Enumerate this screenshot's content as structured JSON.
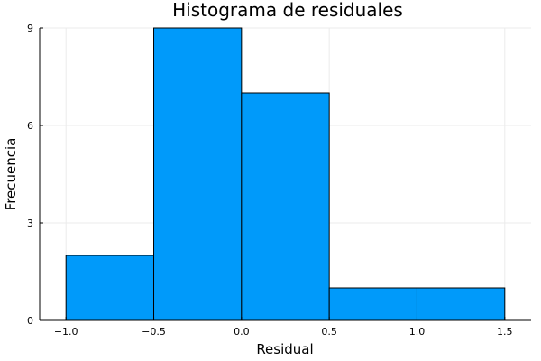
{
  "chart_data": {
    "type": "bar",
    "title": "Histograma de residuales",
    "xlabel": "Residual",
    "ylabel": "Frecuencia",
    "bin_edges": [
      -1.0,
      -0.5,
      0.0,
      0.5,
      1.0,
      1.5
    ],
    "counts": [
      2,
      9,
      7,
      1,
      1
    ],
    "xlim": [
      -1.15,
      1.65
    ],
    "ylim": [
      0,
      9
    ],
    "xticks": [
      -1.0,
      -0.5,
      0.0,
      0.5,
      1.0,
      1.5
    ],
    "xtick_labels": [
      "−1.0",
      "−0.5",
      "0.0",
      "0.5",
      "1.0",
      "1.5"
    ],
    "yticks": [
      0,
      3,
      6,
      9
    ],
    "ytick_labels": [
      "0",
      "3",
      "6",
      "9"
    ],
    "grid": true,
    "legend": false,
    "colors": {
      "bar_fill": "#009AFA",
      "bar_stroke": "#000000",
      "grid": "#EBEBEB",
      "axis": "#000000"
    }
  }
}
